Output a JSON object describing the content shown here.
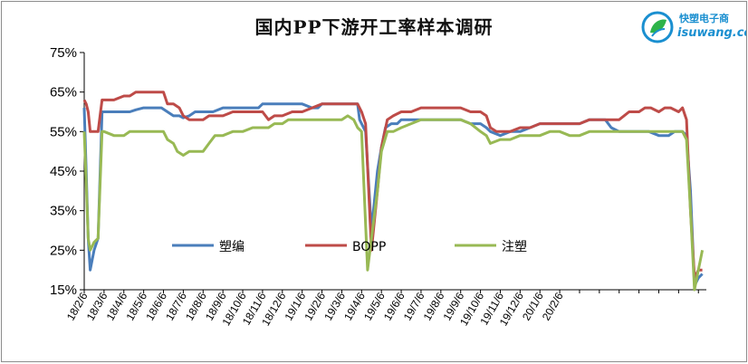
{
  "logo": {
    "top_text": "快塑电子商",
    "bottom_text": "isuwang.co",
    "accent": "#1a8fd0"
  },
  "chart_data": {
    "type": "line",
    "title": "国内PP下游开工率样本调研",
    "xlabel": "",
    "ylabel": "",
    "ylim": [
      15,
      75
    ],
    "yticks": [
      "15%",
      "25%",
      "35%",
      "45%",
      "55%",
      "65%",
      "75%"
    ],
    "categories": [
      "18/2/6",
      "18/3/6",
      "18/4/6",
      "18/5/6",
      "18/6/6",
      "18/7/6",
      "18/8/6",
      "18/9/6",
      "18/10/6",
      "18/11/6",
      "18/12/6",
      "19/1/6",
      "19/2/6",
      "19/3/6",
      "19/4/6",
      "19/5/6",
      "19/6/6",
      "19/7/6",
      "19/8/6",
      "19/9/6",
      "19/10/6",
      "19/11/6",
      "19/12/6",
      "20/1/6",
      "20/2/6"
    ],
    "grid": false,
    "legend": "inside-lower-middle",
    "series": [
      {
        "name": "塑编",
        "color": "#4a7ebb",
        "points": [
          [
            0,
            61
          ],
          [
            0.1,
            45
          ],
          [
            0.2,
            28
          ],
          [
            0.3,
            20
          ],
          [
            0.5,
            25
          ],
          [
            0.7,
            28
          ],
          [
            0.9,
            60
          ],
          [
            1,
            60
          ],
          [
            1.5,
            60
          ],
          [
            2,
            60
          ],
          [
            2.3,
            60
          ],
          [
            2.6,
            60.5
          ],
          [
            3,
            61
          ],
          [
            3.5,
            61
          ],
          [
            3.9,
            61
          ],
          [
            4.2,
            60
          ],
          [
            4.5,
            59
          ],
          [
            4.8,
            59
          ],
          [
            5,
            58.5
          ],
          [
            5.3,
            59
          ],
          [
            5.6,
            60
          ],
          [
            6,
            60
          ],
          [
            6.5,
            60
          ],
          [
            7,
            61
          ],
          [
            7.5,
            61
          ],
          [
            8,
            61
          ],
          [
            8.5,
            61
          ],
          [
            8.8,
            61
          ],
          [
            9,
            62
          ],
          [
            9.5,
            62
          ],
          [
            10,
            62
          ],
          [
            10.5,
            62
          ],
          [
            11,
            62
          ],
          [
            11.5,
            61
          ],
          [
            11.8,
            61
          ],
          [
            12,
            62
          ],
          [
            12.5,
            62
          ],
          [
            13,
            62
          ],
          [
            13.5,
            62
          ],
          [
            13.8,
            62
          ],
          [
            13.9,
            58
          ],
          [
            14.2,
            55
          ],
          [
            14.5,
            30
          ],
          [
            14.8,
            45
          ],
          [
            15,
            51
          ],
          [
            15.2,
            56
          ],
          [
            15.5,
            57
          ],
          [
            15.8,
            57
          ],
          [
            16,
            58
          ],
          [
            16.5,
            58
          ],
          [
            17,
            58
          ],
          [
            17.5,
            58
          ],
          [
            18,
            58
          ],
          [
            18.5,
            58
          ],
          [
            19,
            58
          ],
          [
            19.5,
            57
          ],
          [
            20,
            57
          ],
          [
            20.3,
            56
          ],
          [
            20.5,
            55
          ],
          [
            21,
            54
          ],
          [
            21.5,
            55
          ],
          [
            22,
            55
          ],
          [
            22.5,
            56
          ],
          [
            23,
            57
          ],
          [
            23.5,
            57
          ],
          [
            24,
            57
          ],
          [
            24.5,
            57
          ],
          [
            25,
            57
          ],
          [
            25.5,
            58
          ],
          [
            26,
            58
          ],
          [
            26.3,
            58
          ],
          [
            26.6,
            56
          ],
          [
            27,
            55
          ],
          [
            27.5,
            55
          ],
          [
            28,
            55
          ],
          [
            28.5,
            55
          ],
          [
            29,
            54
          ],
          [
            29.5,
            54
          ],
          [
            29.8,
            55
          ],
          [
            30,
            55
          ],
          [
            30.2,
            55
          ],
          [
            30.4,
            54
          ],
          [
            30.6,
            40
          ],
          [
            30.8,
            16
          ],
          [
            31,
            18
          ],
          [
            31.2,
            19
          ]
        ]
      },
      {
        "name": "BOPP",
        "color": "#be4b48",
        "points": [
          [
            0,
            63
          ],
          [
            0.1,
            62
          ],
          [
            0.2,
            60
          ],
          [
            0.3,
            55
          ],
          [
            0.5,
            55
          ],
          [
            0.7,
            55
          ],
          [
            0.9,
            63
          ],
          [
            1,
            63
          ],
          [
            1.5,
            63
          ],
          [
            2,
            64
          ],
          [
            2.3,
            64
          ],
          [
            2.6,
            65
          ],
          [
            3,
            65
          ],
          [
            3.5,
            65
          ],
          [
            4,
            65
          ],
          [
            4.2,
            62
          ],
          [
            4.5,
            62
          ],
          [
            4.8,
            61
          ],
          [
            5,
            59
          ],
          [
            5.3,
            58
          ],
          [
            5.5,
            58
          ],
          [
            6,
            58
          ],
          [
            6.3,
            59
          ],
          [
            6.6,
            59
          ],
          [
            7,
            59
          ],
          [
            7.5,
            60
          ],
          [
            8,
            60
          ],
          [
            8.5,
            60
          ],
          [
            9,
            60
          ],
          [
            9.3,
            58
          ],
          [
            9.6,
            59
          ],
          [
            10,
            59
          ],
          [
            10.5,
            60
          ],
          [
            11,
            60
          ],
          [
            11.5,
            61
          ],
          [
            12,
            62
          ],
          [
            12.5,
            62
          ],
          [
            13,
            62
          ],
          [
            13.5,
            62
          ],
          [
            13.8,
            62
          ],
          [
            14,
            60
          ],
          [
            14.2,
            57
          ],
          [
            14.5,
            25
          ],
          [
            14.8,
            40
          ],
          [
            15,
            51
          ],
          [
            15.3,
            58
          ],
          [
            15.6,
            59
          ],
          [
            16,
            60
          ],
          [
            16.5,
            60
          ],
          [
            17,
            61
          ],
          [
            17.5,
            61
          ],
          [
            18,
            61
          ],
          [
            18.5,
            61
          ],
          [
            19,
            61
          ],
          [
            19.5,
            60
          ],
          [
            20,
            60
          ],
          [
            20.3,
            59
          ],
          [
            20.5,
            56
          ],
          [
            20.8,
            55
          ],
          [
            21,
            55
          ],
          [
            21.5,
            55
          ],
          [
            22,
            56
          ],
          [
            22.5,
            56
          ],
          [
            23,
            57
          ],
          [
            23.5,
            57
          ],
          [
            24,
            57
          ],
          [
            24.5,
            57
          ],
          [
            25,
            57
          ],
          [
            25.5,
            58
          ],
          [
            26,
            58
          ],
          [
            26.5,
            58
          ],
          [
            27,
            58
          ],
          [
            27.5,
            60
          ],
          [
            28,
            60
          ],
          [
            28.3,
            61
          ],
          [
            28.6,
            61
          ],
          [
            29,
            60
          ],
          [
            29.3,
            61
          ],
          [
            29.6,
            61
          ],
          [
            30,
            60
          ],
          [
            30.2,
            61
          ],
          [
            30.4,
            58
          ],
          [
            30.6,
            35
          ],
          [
            30.8,
            18
          ],
          [
            31,
            20
          ],
          [
            31.2,
            20
          ]
        ]
      },
      {
        "name": "注塑",
        "color": "#98b954",
        "points": [
          [
            0,
            55
          ],
          [
            0.1,
            42
          ],
          [
            0.2,
            28
          ],
          [
            0.3,
            25
          ],
          [
            0.5,
            27
          ],
          [
            0.7,
            28
          ],
          [
            0.9,
            55
          ],
          [
            1,
            55
          ],
          [
            1.5,
            54
          ],
          [
            2,
            54
          ],
          [
            2.3,
            55
          ],
          [
            2.6,
            55
          ],
          [
            3,
            55
          ],
          [
            3.5,
            55
          ],
          [
            4,
            55
          ],
          [
            4.2,
            53
          ],
          [
            4.5,
            52
          ],
          [
            4.7,
            50
          ],
          [
            5,
            49
          ],
          [
            5.3,
            50
          ],
          [
            5.6,
            50
          ],
          [
            6,
            50
          ],
          [
            6.3,
            52
          ],
          [
            6.6,
            54
          ],
          [
            7,
            54
          ],
          [
            7.5,
            55
          ],
          [
            8,
            55
          ],
          [
            8.5,
            56
          ],
          [
            9,
            56
          ],
          [
            9.3,
            56
          ],
          [
            9.6,
            57
          ],
          [
            10,
            57
          ],
          [
            10.3,
            58
          ],
          [
            10.6,
            58
          ],
          [
            11,
            58
          ],
          [
            11.5,
            58
          ],
          [
            12,
            58
          ],
          [
            12.5,
            58
          ],
          [
            13,
            58
          ],
          [
            13.3,
            59
          ],
          [
            13.6,
            58
          ],
          [
            13.8,
            56
          ],
          [
            14,
            55
          ],
          [
            14.3,
            20
          ],
          [
            14.5,
            28
          ],
          [
            14.8,
            40
          ],
          [
            15,
            50
          ],
          [
            15.3,
            55
          ],
          [
            15.6,
            55
          ],
          [
            16,
            56
          ],
          [
            16.5,
            57
          ],
          [
            17,
            58
          ],
          [
            17.5,
            58
          ],
          [
            18,
            58
          ],
          [
            18.5,
            58
          ],
          [
            19,
            58
          ],
          [
            19.5,
            57
          ],
          [
            20,
            55
          ],
          [
            20.3,
            54
          ],
          [
            20.5,
            52
          ],
          [
            21,
            53
          ],
          [
            21.5,
            53
          ],
          [
            22,
            54
          ],
          [
            22.5,
            54
          ],
          [
            23,
            54
          ],
          [
            23.5,
            55
          ],
          [
            24,
            55
          ],
          [
            24.5,
            54
          ],
          [
            25,
            54
          ],
          [
            25.5,
            55
          ],
          [
            26,
            55
          ],
          [
            26.5,
            55
          ],
          [
            27,
            55
          ],
          [
            27.5,
            55
          ],
          [
            28,
            55
          ],
          [
            28.5,
            55
          ],
          [
            29,
            55
          ],
          [
            29.5,
            55
          ],
          [
            30,
            55
          ],
          [
            30.2,
            55
          ],
          [
            30.4,
            53
          ],
          [
            30.6,
            35
          ],
          [
            30.8,
            15
          ],
          [
            31,
            20
          ],
          [
            31.2,
            25
          ]
        ]
      }
    ]
  }
}
